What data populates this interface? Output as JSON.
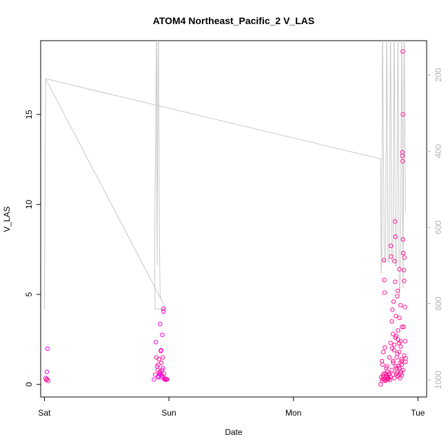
{
  "chart_data": {
    "type": "scatter",
    "title": "ATOM4 Northeast_Pacific_2 V_LAS",
    "xlabel": "Date",
    "ylabel": "V_LAS",
    "x_ticks": [
      "Sat",
      "Sun",
      "Mon",
      "Tue"
    ],
    "x_unit": "days from Sat",
    "xlim": [
      -0.03,
      3.07
    ],
    "ylim": [
      -0.7,
      19.1
    ],
    "y_ticks": [
      0,
      5,
      10,
      15
    ],
    "y2_ticks": [
      200,
      400,
      600,
      800,
      1000
    ],
    "y2lim": [
      110,
      1045
    ],
    "grid": false,
    "series": [
      {
        "kind": "scatter",
        "color": "#ff1493",
        "color_alt": "#ee00ee",
        "points": [
          [
            0.01,
            0.35
          ],
          [
            0.015,
            0.25
          ],
          [
            0.02,
            0.7
          ],
          [
            0.022,
            0.3
          ],
          [
            0.025,
            1.98
          ],
          [
            0.03,
            0.2
          ],
          [
            0.88,
            0.28
          ],
          [
            0.89,
            0.55
          ],
          [
            0.895,
            2.35
          ],
          [
            0.9,
            1.5
          ],
          [
            0.905,
            1.0
          ],
          [
            0.91,
            0.8
          ],
          [
            0.915,
            0.4
          ],
          [
            0.92,
            1.4
          ],
          [
            0.925,
            0.6
          ],
          [
            0.928,
            0.7
          ],
          [
            0.93,
            3.35
          ],
          [
            0.935,
            1.85
          ],
          [
            0.937,
            1.9
          ],
          [
            0.94,
            0.4
          ],
          [
            0.942,
            0.5
          ],
          [
            0.945,
            0.8
          ],
          [
            0.947,
            2.75
          ],
          [
            0.95,
            1.5
          ],
          [
            0.952,
            0.9
          ],
          [
            0.955,
            4.2
          ],
          [
            0.957,
            4.05
          ],
          [
            0.96,
            0.6
          ],
          [
            0.962,
            0.3
          ],
          [
            0.965,
            0.35
          ],
          [
            0.97,
            0.3
          ],
          [
            0.975,
            0.25
          ],
          [
            0.98,
            0.3
          ],
          [
            0.985,
            0.28
          ],
          [
            0.93,
            0.55
          ],
          [
            0.915,
            1.1
          ],
          [
            0.92,
            0.45
          ],
          [
            0.94,
            1.2
          ],
          [
            2.7,
            0.0
          ],
          [
            2.705,
            0.4
          ],
          [
            2.71,
            1.3
          ],
          [
            2.712,
            0.2
          ],
          [
            2.715,
            1.1
          ],
          [
            2.72,
            0.5
          ],
          [
            2.722,
            1.8
          ],
          [
            2.725,
            0.3
          ],
          [
            2.728,
            6.9
          ],
          [
            2.73,
            5.8
          ],
          [
            2.732,
            5.1
          ],
          [
            2.735,
            2.05
          ],
          [
            2.74,
            0.6
          ],
          [
            2.745,
            0.9
          ],
          [
            2.75,
            0.3
          ],
          [
            2.752,
            1.0
          ],
          [
            2.755,
            0.7
          ],
          [
            2.76,
            0.4
          ],
          [
            2.765,
            0.35
          ],
          [
            2.77,
            1.5
          ],
          [
            2.775,
            0.25
          ],
          [
            2.78,
            2.3
          ],
          [
            2.782,
            7.7
          ],
          [
            2.785,
            7.1
          ],
          [
            2.79,
            3.5
          ],
          [
            2.792,
            2.0
          ],
          [
            2.795,
            4.15
          ],
          [
            2.8,
            1.3
          ],
          [
            2.802,
            1.2
          ],
          [
            2.805,
            4.6
          ],
          [
            2.81,
            2.2
          ],
          [
            2.812,
            6.85
          ],
          [
            2.815,
            9.05
          ],
          [
            2.817,
            5.7
          ],
          [
            2.82,
            8.2
          ],
          [
            2.822,
            3.8
          ],
          [
            2.825,
            2.7
          ],
          [
            2.828,
            0.9
          ],
          [
            2.83,
            0.6
          ],
          [
            2.833,
            4.9
          ],
          [
            2.835,
            1.7
          ],
          [
            2.838,
            5.2
          ],
          [
            2.84,
            2.5
          ],
          [
            2.842,
            1.0
          ],
          [
            2.845,
            0.55
          ],
          [
            2.848,
            2.3
          ],
          [
            2.85,
            6.4
          ],
          [
            2.852,
            3.7
          ],
          [
            2.855,
            0.35
          ],
          [
            2.858,
            1.2
          ],
          [
            2.86,
            4.4
          ],
          [
            2.862,
            2.1
          ],
          [
            2.865,
            0.7
          ],
          [
            2.868,
            1.4
          ],
          [
            2.87,
            0.5
          ],
          [
            2.873,
            3.2
          ],
          [
            2.875,
            12.9
          ],
          [
            2.876,
            12.7
          ],
          [
            2.877,
            12.4
          ],
          [
            2.878,
            18.5
          ],
          [
            2.879,
            15.0
          ],
          [
            2.88,
            8.05
          ],
          [
            2.882,
            7.3
          ],
          [
            2.885,
            3.2
          ],
          [
            2.888,
            6.35
          ],
          [
            2.89,
            5.75
          ],
          [
            2.892,
            7.05
          ],
          [
            2.895,
            4.3
          ],
          [
            2.898,
            2.4
          ],
          [
            2.9,
            1.25
          ],
          [
            2.902,
            1.45
          ],
          [
            2.74,
            0.2
          ],
          [
            2.75,
            0.5
          ],
          [
            2.76,
            0.3
          ],
          [
            2.77,
            0.6
          ],
          [
            2.78,
            0.4
          ],
          [
            2.79,
            0.8
          ],
          [
            2.8,
            0.55
          ],
          [
            2.81,
            0.35
          ],
          [
            2.82,
            1.0
          ],
          [
            2.83,
            0.7
          ],
          [
            2.84,
            0.45
          ],
          [
            2.85,
            0.9
          ],
          [
            2.86,
            0.6
          ],
          [
            2.87,
            1.1
          ],
          [
            2.88,
            0.8
          ],
          [
            2.89,
            1.6
          ],
          [
            2.715,
            0.3
          ],
          [
            2.725,
            0.6
          ],
          [
            2.735,
            0.25
          ],
          [
            2.745,
            0.45
          ],
          [
            2.755,
            0.3
          ],
          [
            2.765,
            0.55
          ],
          [
            2.8,
            2.8
          ],
          [
            2.81,
            1.9
          ],
          [
            2.82,
            2.6
          ],
          [
            2.83,
            1.5
          ],
          [
            2.84,
            3.0
          ],
          [
            2.85,
            1.8
          ],
          [
            2.86,
            2.4
          ],
          [
            2.87,
            1.3
          ]
        ]
      },
      {
        "kind": "depth-line",
        "color": "#c8c8c8",
        "axis": "y2",
        "points": [
          [
            0.0,
            815
          ],
          [
            0.01,
            210
          ],
          [
            0.98,
            815
          ],
          [
            0.99,
            815
          ],
          [
            0.89,
            815
          ],
          [
            0.885,
            700
          ],
          [
            0.9,
            50
          ],
          [
            0.905,
            700
          ],
          [
            0.91,
            320
          ],
          [
            0.915,
            50
          ],
          [
            0.925,
            670
          ],
          [
            0.93,
            780
          ],
          [
            0.94,
            790
          ],
          [
            0.01,
            210
          ],
          [
            2.7,
            420
          ],
          [
            2.705,
            720
          ],
          [
            2.71,
            690
          ],
          [
            2.715,
            50
          ],
          [
            2.73,
            690
          ],
          [
            2.74,
            690
          ],
          [
            2.75,
            50
          ],
          [
            2.76,
            690
          ],
          [
            2.77,
            690
          ],
          [
            2.78,
            50
          ],
          [
            2.79,
            690
          ],
          [
            2.8,
            690
          ],
          [
            2.81,
            50
          ],
          [
            2.82,
            700
          ],
          [
            2.83,
            700
          ],
          [
            2.84,
            50
          ],
          [
            2.85,
            780
          ],
          [
            2.86,
            730
          ],
          [
            2.87,
            50
          ],
          [
            2.88,
            760
          ],
          [
            2.89,
            50
          ],
          [
            2.9,
            560
          ]
        ]
      }
    ]
  }
}
